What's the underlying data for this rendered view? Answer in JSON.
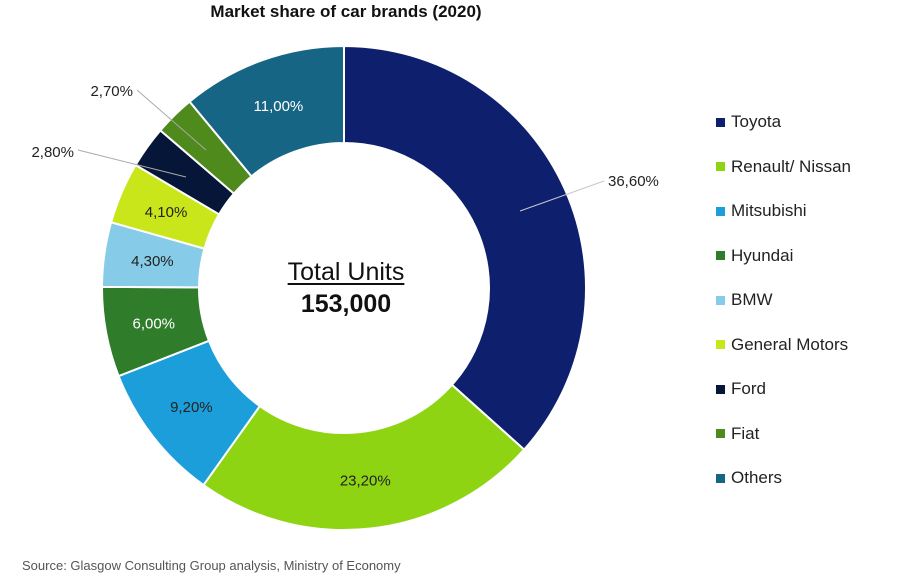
{
  "chart_data": {
    "type": "pie",
    "variant": "donut",
    "title": "Market share of car brands (2020)",
    "center_title": "Total Units",
    "center_value": "153,000",
    "legend_position": "right",
    "source": "Source: Glasgow Consulting Group analysis, Ministry of Economy",
    "slices": [
      {
        "name": "Toyota",
        "value": 36.6,
        "label": "36,60%",
        "color": "#0e1f6e",
        "label_color": "#222222",
        "label_outside": true
      },
      {
        "name": "Renault/ Nissan",
        "value": 23.2,
        "label": "23,20%",
        "color": "#8fd413",
        "label_color": "#222222",
        "label_outside": false
      },
      {
        "name": "Mitsubishi",
        "value": 9.2,
        "label": "9,20%",
        "color": "#1c9edb",
        "label_color": "#222222",
        "label_outside": false
      },
      {
        "name": "Hyundai",
        "value": 6.0,
        "label": "6,00%",
        "color": "#2f7d2a",
        "label_color": "#ffffff",
        "label_outside": false
      },
      {
        "name": "BMW",
        "value": 4.3,
        "label": "4,30%",
        "color": "#86cbe8",
        "label_color": "#222222",
        "label_outside": false
      },
      {
        "name": "General Motors",
        "value": 4.1,
        "label": "4,10%",
        "color": "#c9e61a",
        "label_color": "#222222",
        "label_outside": false
      },
      {
        "name": "Ford",
        "value": 2.8,
        "label": "2,80%",
        "color": "#061638",
        "label_color": "#222222",
        "label_outside": true
      },
      {
        "name": "Fiat",
        "value": 2.7,
        "label": "2,70%",
        "color": "#4e8a1c",
        "label_color": "#222222",
        "label_outside": true
      },
      {
        "name": "Others",
        "value": 11.0,
        "label": "11,00%",
        "color": "#176585",
        "label_color": "#ffffff",
        "label_outside": false
      }
    ]
  }
}
